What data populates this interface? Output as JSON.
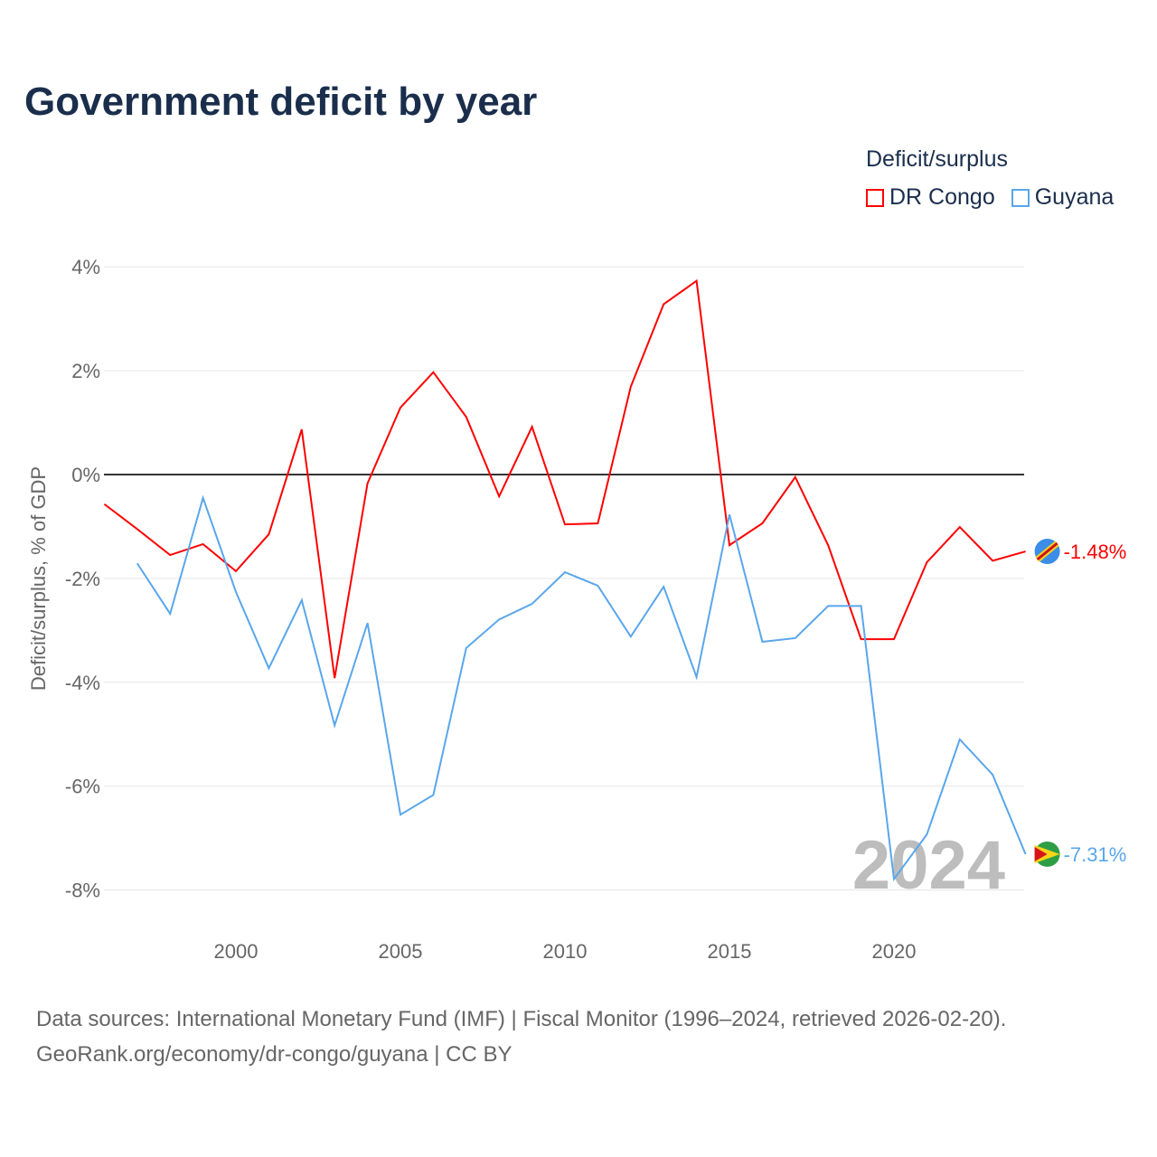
{
  "chart_data": {
    "type": "line",
    "title": "Government deficit by year",
    "xlabel": "",
    "ylabel": "Deficit/surplus, % of GDP",
    "xlim": [
      1996,
      2024
    ],
    "ylim": [
      -8.9,
      4.3
    ],
    "yticks": [
      4,
      2,
      0,
      -2,
      -4,
      -6,
      -8
    ],
    "ytick_labels": [
      "4%",
      "2%",
      "0%",
      "-2%",
      "-4%",
      "-6%",
      "-8%"
    ],
    "xticks": [
      2000,
      2005,
      2010,
      2015,
      2020
    ],
    "xtick_labels": [
      "2000",
      "2005",
      "2010",
      "2015",
      "2020"
    ],
    "legend_title": "Deficit/surplus",
    "legend_position": "top-right",
    "watermark_year": "2024",
    "series": [
      {
        "name": "DR Congo",
        "color": "#ff0000",
        "end_label": "-1.48%",
        "x": [
          1996,
          1997,
          1998,
          1999,
          2000,
          2001,
          2002,
          2003,
          2004,
          2005,
          2006,
          2007,
          2008,
          2009,
          2010,
          2011,
          2012,
          2013,
          2014,
          2015,
          2016,
          2017,
          2018,
          2019,
          2020,
          2021,
          2022,
          2023,
          2024
        ],
        "values": [
          -0.57,
          -1.05,
          -1.55,
          -1.34,
          -1.86,
          -1.15,
          0.87,
          -3.92,
          -0.17,
          1.29,
          1.97,
          1.11,
          -0.42,
          0.92,
          -0.96,
          -0.94,
          1.69,
          3.28,
          3.73,
          -1.36,
          -0.94,
          -0.05,
          -1.36,
          -3.17,
          -3.17,
          -1.69,
          -1.01,
          -1.66,
          -1.48
        ]
      },
      {
        "name": "Guyana",
        "color": "#5aa6ec",
        "end_label": "-7.31%",
        "x": [
          1997,
          1998,
          1999,
          2000,
          2001,
          2002,
          2003,
          2004,
          2005,
          2006,
          2007,
          2008,
          2009,
          2010,
          2011,
          2012,
          2013,
          2014,
          2015,
          2016,
          2017,
          2018,
          2019,
          2020,
          2021,
          2022,
          2023,
          2024
        ],
        "values": [
          -1.71,
          -2.68,
          -0.45,
          -2.26,
          -3.73,
          -2.42,
          -4.83,
          -2.86,
          -6.55,
          -6.17,
          -3.34,
          -2.79,
          -2.49,
          -1.88,
          -2.14,
          -3.12,
          -2.16,
          -3.9,
          -0.77,
          -3.22,
          -3.15,
          -2.53,
          -2.53,
          -7.79,
          -6.93,
          -5.1,
          -5.78,
          -7.31
        ]
      }
    ]
  },
  "source_line1": "Data sources: International Monetary Fund (IMF) | Fiscal Monitor (1996–2024, retrieved 2026-02-20).",
  "source_line2": "GeoRank.org/economy/dr-congo/guyana | CC BY"
}
